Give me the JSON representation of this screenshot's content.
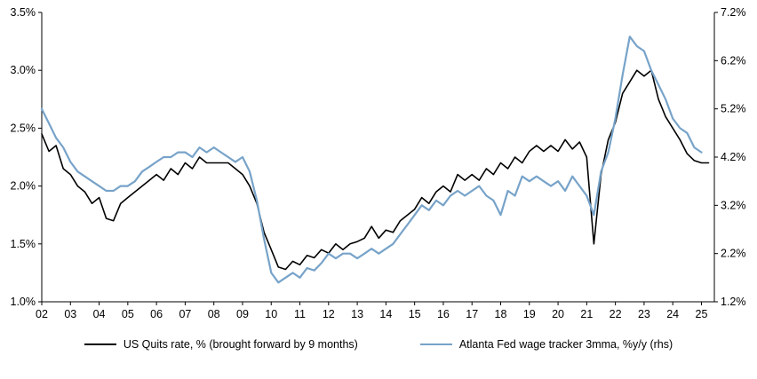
{
  "chart_data": {
    "type": "line",
    "title": "",
    "xlabel": "",
    "ylabel": "",
    "grid": false,
    "legend_position": "bottom",
    "x_range": [
      2002,
      2025.45
    ],
    "x_ticks": {
      "values": [
        2002,
        2003,
        2004,
        2005,
        2006,
        2007,
        2008,
        2009,
        2010,
        2011,
        2012,
        2013,
        2014,
        2015,
        2016,
        2017,
        2018,
        2019,
        2020,
        2021,
        2022,
        2023,
        2024,
        2025
      ],
      "labels": [
        "02",
        "03",
        "04",
        "05",
        "06",
        "07",
        "08",
        "09",
        "10",
        "11",
        "12",
        "13",
        "14",
        "15",
        "16",
        "17",
        "18",
        "19",
        "20",
        "21",
        "22",
        "23",
        "24",
        "25"
      ]
    },
    "left_axis": {
      "range": [
        1.0,
        3.5
      ],
      "tick_values": [
        1.0,
        1.5,
        2.0,
        2.5,
        3.0,
        3.5
      ],
      "tick_labels": [
        "1.0%",
        "1.5%",
        "2.0%",
        "2.5%",
        "3.0%",
        "3.5%"
      ]
    },
    "right_axis": {
      "range": [
        1.2,
        7.2
      ],
      "tick_values": [
        1.2,
        2.2,
        3.2,
        4.2,
        5.2,
        6.2,
        7.2
      ],
      "tick_labels": [
        "1.2%",
        "2.2%",
        "3.2%",
        "4.2%",
        "5.2%",
        "6.2%",
        "7.2%"
      ]
    },
    "series": [
      {
        "name": "US Quits rate, % (brought forward by 9 months)",
        "color": "#000000",
        "stroke_width": 1.6,
        "axis": "left",
        "x_start": 2002,
        "x_step": 0.25,
        "values": [
          2.45,
          2.3,
          2.35,
          2.15,
          2.1,
          2.0,
          1.95,
          1.85,
          1.9,
          1.72,
          1.7,
          1.85,
          1.9,
          1.95,
          2.0,
          2.05,
          2.1,
          2.05,
          2.15,
          2.1,
          2.2,
          2.15,
          2.25,
          2.2,
          2.2,
          2.2,
          2.2,
          2.15,
          2.1,
          2.0,
          1.85,
          1.6,
          1.45,
          1.3,
          1.28,
          1.35,
          1.32,
          1.4,
          1.38,
          1.45,
          1.42,
          1.5,
          1.45,
          1.5,
          1.52,
          1.55,
          1.65,
          1.55,
          1.62,
          1.6,
          1.7,
          1.75,
          1.8,
          1.9,
          1.85,
          1.95,
          2.0,
          1.95,
          2.1,
          2.05,
          2.1,
          2.05,
          2.15,
          2.1,
          2.2,
          2.15,
          2.25,
          2.2,
          2.3,
          2.35,
          2.3,
          2.35,
          2.3,
          2.4,
          2.32,
          2.38,
          2.25,
          1.5,
          2.1,
          2.4,
          2.55,
          2.8,
          2.9,
          3.0,
          2.95,
          3.0,
          2.75,
          2.6,
          2.5,
          2.4,
          2.28,
          2.22,
          2.2,
          2.2
        ]
      },
      {
        "name": "Atlanta Fed wage tracker 3mma, %y/y (rhs)",
        "color": "#77a3c9",
        "stroke_width": 2.2,
        "axis": "right",
        "x_start": 2002,
        "x_step": 0.25,
        "values": [
          5.2,
          4.9,
          4.6,
          4.4,
          4.1,
          3.9,
          3.8,
          3.7,
          3.6,
          3.5,
          3.5,
          3.6,
          3.6,
          3.7,
          3.9,
          4.0,
          4.1,
          4.2,
          4.2,
          4.3,
          4.3,
          4.2,
          4.4,
          4.3,
          4.4,
          4.3,
          4.2,
          4.1,
          4.2,
          3.9,
          3.3,
          2.5,
          1.8,
          1.6,
          1.7,
          1.8,
          1.7,
          1.9,
          1.85,
          2.0,
          2.2,
          2.1,
          2.2,
          2.2,
          2.1,
          2.2,
          2.3,
          2.2,
          2.3,
          2.4,
          2.6,
          2.8,
          3.0,
          3.2,
          3.1,
          3.3,
          3.2,
          3.4,
          3.5,
          3.4,
          3.5,
          3.6,
          3.4,
          3.3,
          3.0,
          3.5,
          3.4,
          3.8,
          3.7,
          3.8,
          3.7,
          3.6,
          3.7,
          3.5,
          3.8,
          3.6,
          3.4,
          3.0,
          3.9,
          4.3,
          5.0,
          5.9,
          6.7,
          6.5,
          6.4,
          6.0,
          5.7,
          5.4,
          5.0,
          4.8,
          4.7,
          4.4,
          4.3
        ]
      }
    ]
  },
  "legend": {
    "items": [
      {
        "label": "US Quits rate, % (brought forward by 9 months)"
      },
      {
        "label": "Atlanta Fed wage tracker 3mma, %y/y (rhs)"
      }
    ]
  }
}
